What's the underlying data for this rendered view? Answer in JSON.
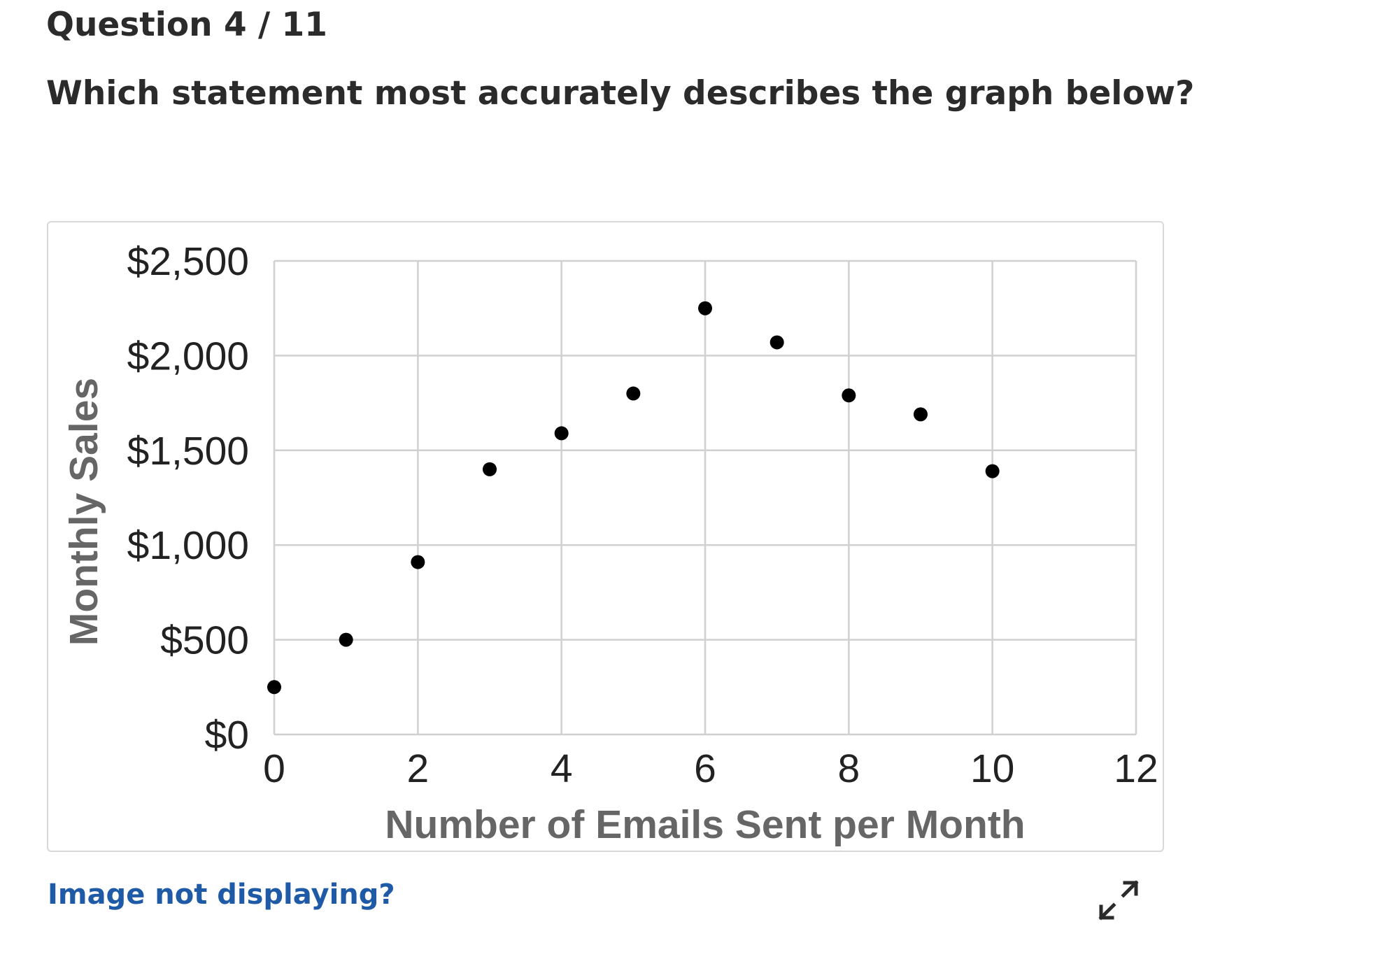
{
  "question": {
    "number_label": "Question 4 / 11",
    "prompt": "Which statement most accurately describes the graph below?"
  },
  "chart_data": {
    "type": "scatter",
    "xlabel": "Number of Emails Sent per Month",
    "ylabel": "Monthly Sales",
    "xlim": [
      0,
      12
    ],
    "ylim": [
      0,
      2500
    ],
    "x_ticks": [
      "0",
      "2",
      "4",
      "6",
      "8",
      "10",
      "12"
    ],
    "y_ticks": [
      "$0",
      "$500",
      "$1,000",
      "$1,500",
      "$2,000",
      "$2,500"
    ],
    "grid": true,
    "point_color": "#000000",
    "points": [
      {
        "x": 0,
        "y": 250
      },
      {
        "x": 1,
        "y": 500
      },
      {
        "x": 2,
        "y": 910
      },
      {
        "x": 3,
        "y": 1400
      },
      {
        "x": 4,
        "y": 1590
      },
      {
        "x": 5,
        "y": 1800
      },
      {
        "x": 6,
        "y": 2250
      },
      {
        "x": 7,
        "y": 2070
      },
      {
        "x": 8,
        "y": 1790
      },
      {
        "x": 9,
        "y": 1690
      },
      {
        "x": 10,
        "y": 1390
      }
    ]
  },
  "links": {
    "image_help": "Image not displaying?"
  },
  "icons": {
    "expand": "expand-icon"
  },
  "colors": {
    "link": "#1f5aa6",
    "grid": "#d0d0d0",
    "card_border": "#d9d9d9"
  }
}
